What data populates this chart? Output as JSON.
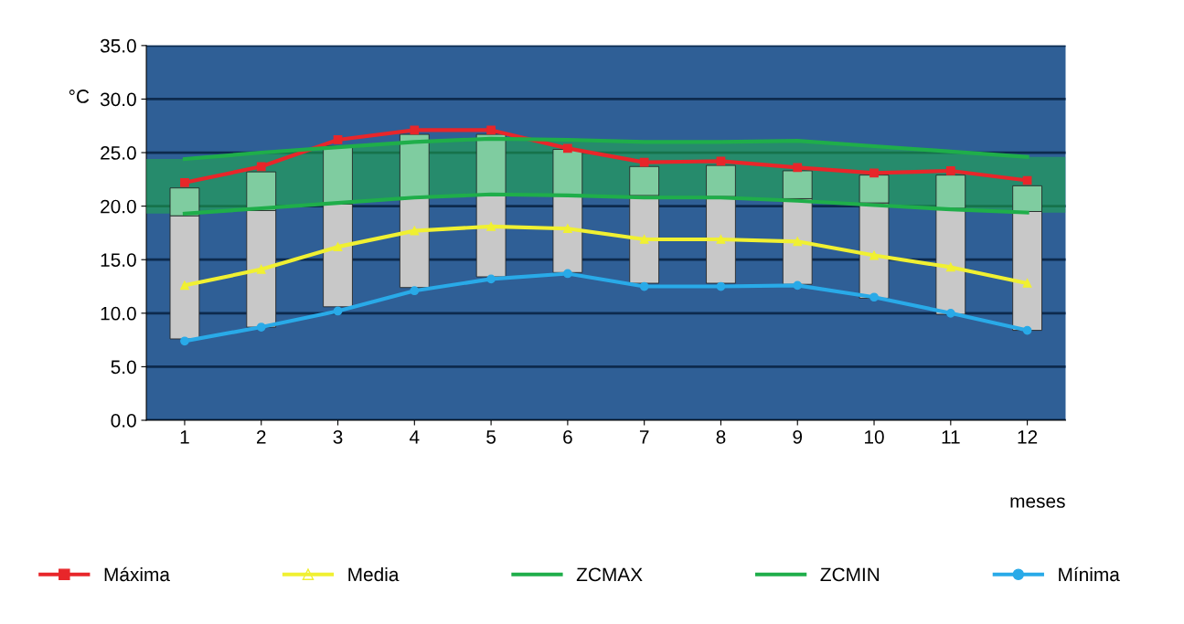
{
  "chart_data": {
    "type": "line",
    "ylabel": "°C",
    "xlabel": "meses",
    "categories": [
      "1",
      "2",
      "3",
      "4",
      "5",
      "6",
      "7",
      "8",
      "9",
      "10",
      "11",
      "12"
    ],
    "ylim": [
      0,
      35
    ],
    "yticks": [
      {
        "value": 0,
        "label": "0.0"
      },
      {
        "value": 5,
        "label": "5.0"
      },
      {
        "value": 10,
        "label": "10.0"
      },
      {
        "value": 15,
        "label": "15.0"
      },
      {
        "value": 20,
        "label": "20.0"
      },
      {
        "value": 25,
        "label": "25.0"
      },
      {
        "value": 30,
        "label": "30.0"
      },
      {
        "value": 35,
        "label": "35.0"
      }
    ],
    "grid": "y",
    "legend": "bottom",
    "stacked": true,
    "line_style": "solid",
    "series": [
      {
        "name": "Máxima",
        "color": "#e8262a",
        "marker": "square",
        "values": [
          22.2,
          23.7,
          26.2,
          27.1,
          27.1,
          25.4,
          24.1,
          24.2,
          23.6,
          23.1,
          23.3,
          22.4
        ]
      },
      {
        "name": "Media",
        "color": "#f0f032",
        "marker": "triangle",
        "values": [
          12.6,
          14.1,
          16.2,
          17.7,
          18.1,
          17.9,
          16.9,
          16.9,
          16.7,
          15.4,
          14.3,
          12.8
        ]
      },
      {
        "name": "ZCMAX",
        "color": "#1fae4a",
        "marker": "none",
        "values": [
          24.4,
          25.0,
          25.5,
          26.0,
          26.3,
          26.2,
          26.0,
          26.0,
          26.1,
          25.6,
          25.1,
          24.6
        ]
      },
      {
        "name": "ZCMIN",
        "color": "#1fae4a",
        "marker": "none",
        "values": [
          19.3,
          19.8,
          20.3,
          20.8,
          21.1,
          21.0,
          20.8,
          20.8,
          20.5,
          20.1,
          19.7,
          19.4
        ]
      },
      {
        "name": "Mínima",
        "color": "#29aae8",
        "marker": "circle",
        "values": [
          7.4,
          8.7,
          10.2,
          12.1,
          13.2,
          13.7,
          12.5,
          12.5,
          12.6,
          11.5,
          10.0,
          8.4
        ]
      },
      {
        "type": "bar",
        "color": "#c8c8c8",
        "base": [
          7.6,
          8.7,
          10.6,
          12.4,
          13.4,
          13.8,
          12.8,
          12.8,
          12.7,
          11.4,
          9.9,
          8.4
        ],
        "values": [
          11.5,
          10.9,
          9.6,
          8.4,
          7.7,
          7.2,
          8.2,
          8.1,
          8.0,
          8.9,
          9.9,
          11.1
        ]
      },
      {
        "type": "bar",
        "color": "#7fcca0",
        "values": [
          2.6,
          3.6,
          5.4,
          5.9,
          5.6,
          4.3,
          2.7,
          2.9,
          2.6,
          2.6,
          3.1,
          2.4
        ]
      }
    ]
  }
}
